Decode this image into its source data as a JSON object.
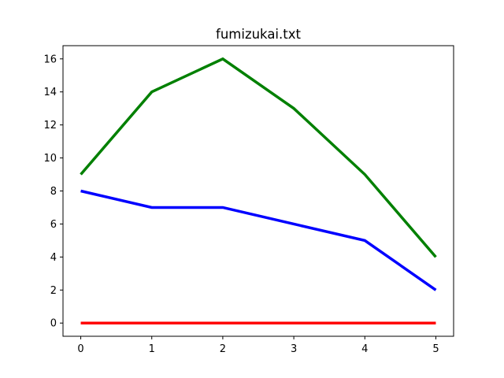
{
  "chart_data": {
    "type": "line",
    "title": "fumizukai.txt",
    "xlabel": "",
    "ylabel": "",
    "x": [
      0,
      1,
      2,
      3,
      4,
      5
    ],
    "xlim": [
      -0.25,
      5.25
    ],
    "ylim": [
      -0.8,
      16.8
    ],
    "xticks": [
      0,
      1,
      2,
      3,
      4,
      5
    ],
    "yticks": [
      0,
      2,
      4,
      6,
      8,
      10,
      12,
      14,
      16
    ],
    "grid": false,
    "legend": "none",
    "series": [
      {
        "color": "#008000",
        "values": [
          9,
          14,
          16,
          13,
          9,
          4
        ]
      },
      {
        "color": "#0000ff",
        "values": [
          8,
          7,
          7,
          6,
          5,
          2
        ]
      },
      {
        "color": "#ff0000",
        "values": [
          0,
          0,
          0,
          0,
          0,
          0
        ]
      }
    ]
  }
}
